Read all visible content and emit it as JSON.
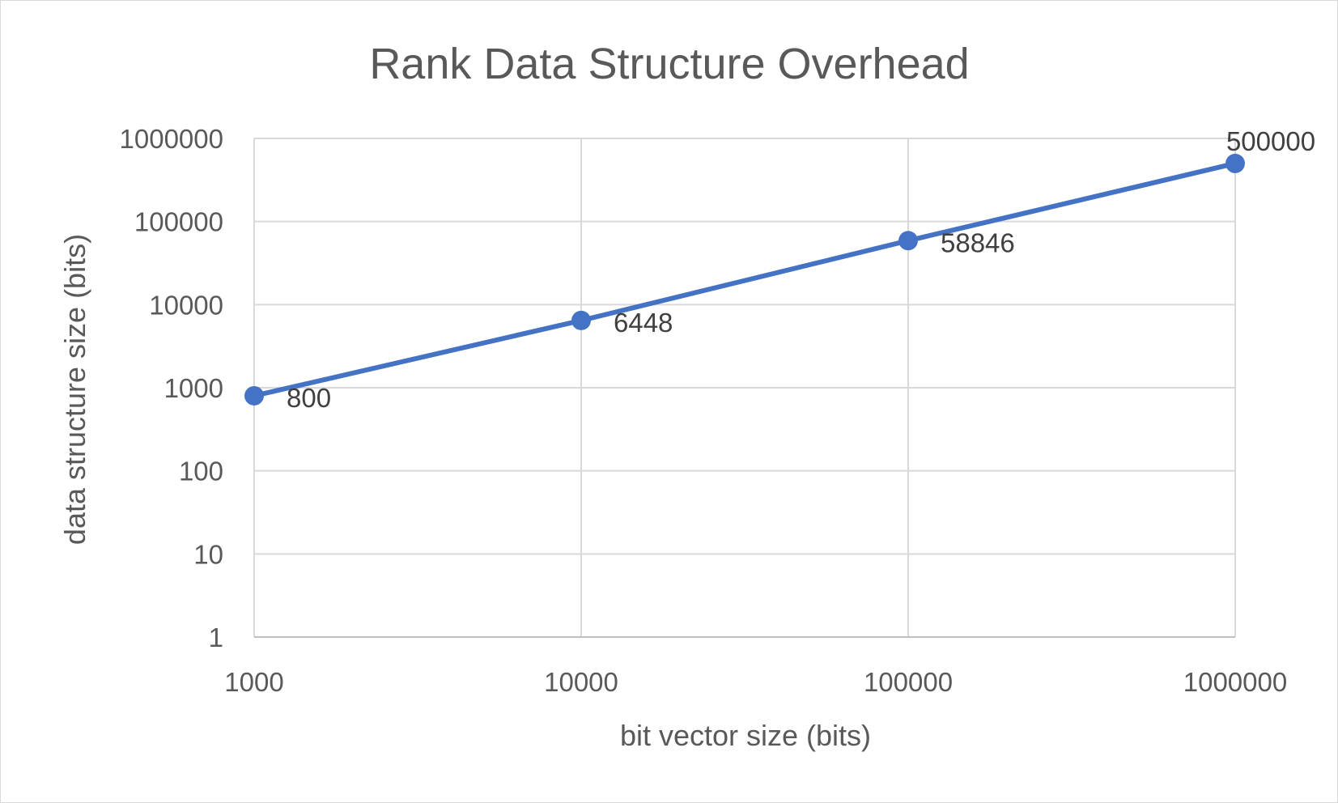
{
  "chart_data": {
    "type": "line",
    "title": "Rank Data Structure Overhead",
    "xlabel": "bit vector size (bits)",
    "ylabel": "data structure size (bits)",
    "x_scale": "log",
    "y_scale": "log",
    "xlim": [
      1000,
      1000000
    ],
    "ylim": [
      1,
      1000000
    ],
    "x_ticks": [
      "1000",
      "10000",
      "100000",
      "1000000"
    ],
    "y_ticks": [
      "1",
      "10",
      "100",
      "1000",
      "10000",
      "100000",
      "1000000"
    ],
    "grid": true,
    "legend": "none",
    "series_color": "#4472c4",
    "series": [
      {
        "x": [
          1000,
          10000,
          100000,
          1000000
        ],
        "values": [
          800,
          6448,
          58846,
          500000
        ],
        "labels": [
          "800",
          "6448",
          "58846",
          "500000"
        ]
      }
    ]
  }
}
